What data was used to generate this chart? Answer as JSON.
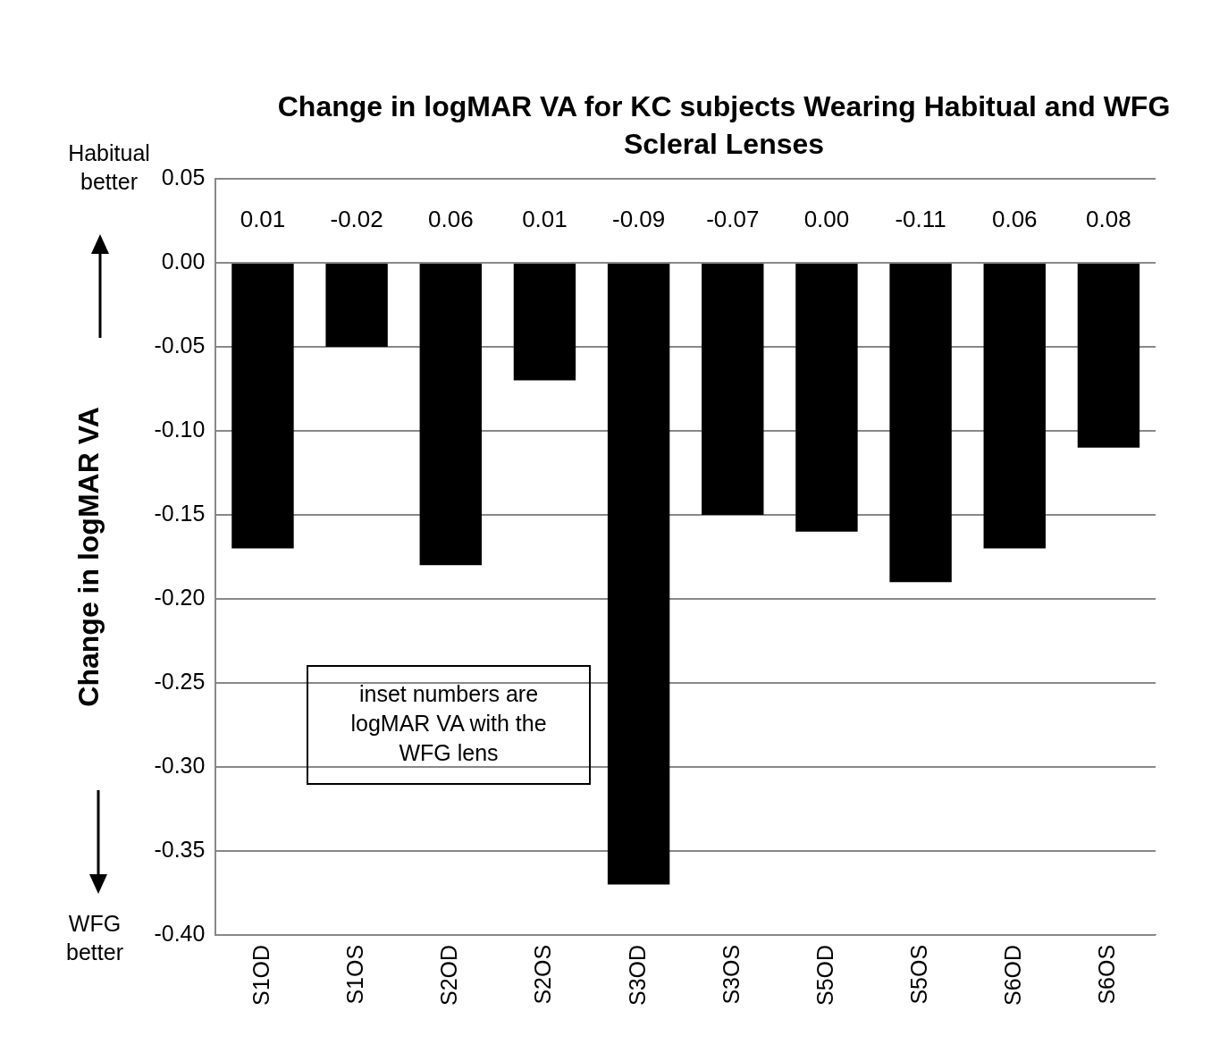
{
  "chart_data": {
    "type": "bar",
    "title": "Change in logMAR VA for KC subjects Wearing Habitual and WFG Scleral Lenses",
    "ylabel": "Change in logMAR VA",
    "categories": [
      "S1OD",
      "S1OS",
      "S2OD",
      "S2OS",
      "S3OD",
      "S3OS",
      "S5OD",
      "S5OS",
      "S6OD",
      "S6OS"
    ],
    "values": [
      -0.17,
      -0.05,
      -0.18,
      -0.07,
      -0.37,
      -0.15,
      -0.16,
      -0.19,
      -0.17,
      -0.11
    ],
    "color": "#000000",
    "ylim": [
      -0.4,
      0.05
    ],
    "yticks": [
      {
        "value": 0.05,
        "label": "0.05"
      },
      {
        "value": 0,
        "label": "0.00"
      },
      {
        "value": -0.05,
        "label": "-0.05"
      },
      {
        "value": -0.1,
        "label": "-0.10"
      },
      {
        "value": -0.15,
        "label": "-0.15"
      },
      {
        "value": -0.2,
        "label": "-0.20"
      },
      {
        "value": -0.25,
        "label": "-0.25"
      },
      {
        "value": -0.3,
        "label": "-0.30"
      },
      {
        "value": -0.35,
        "label": "-0.35"
      },
      {
        "value": -0.4,
        "label": "-0.40"
      }
    ],
    "grid": "y",
    "legend": false,
    "annotations": [
      "Habitual better",
      "WFG better",
      "inset numbers are logMAR VA with the WFG lens",
      "0.01",
      "-0.02",
      "0.06",
      "0.01",
      "-0.09",
      "-0.07",
      "0.00",
      "-0.11",
      "0.06",
      "0.08"
    ]
  }
}
